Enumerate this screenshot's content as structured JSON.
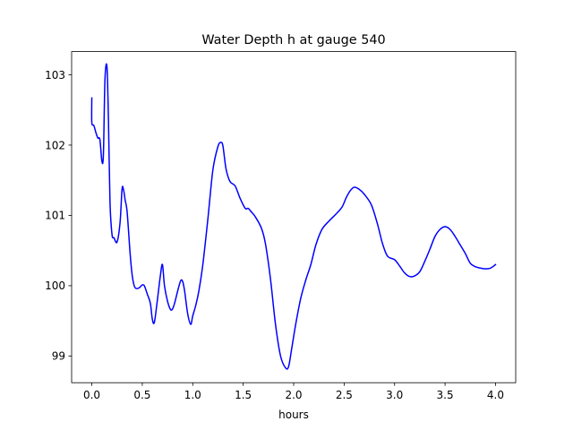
{
  "chart_data": {
    "type": "line",
    "title": "Water Depth h at gauge 540",
    "xlabel": "hours",
    "ylabel": "",
    "xlim": [
      -0.2,
      4.2
    ],
    "ylim": [
      98.62,
      103.33
    ],
    "xticks": [
      0.0,
      0.5,
      1.0,
      1.5,
      2.0,
      2.5,
      3.0,
      3.5,
      4.0
    ],
    "xtick_labels": [
      "0.0",
      "0.5",
      "1.0",
      "1.5",
      "2.0",
      "2.5",
      "3.0",
      "3.5",
      "4.0"
    ],
    "yticks": [
      99,
      100,
      101,
      102,
      103
    ],
    "ytick_labels": [
      "99",
      "100",
      "101",
      "102",
      "103"
    ],
    "grid": false,
    "series": [
      {
        "color": "#0000ff",
        "x": [
          0.0,
          0.0,
          0.02,
          0.04,
          0.06,
          0.08,
          0.1,
          0.115,
          0.13,
          0.15,
          0.165,
          0.18,
          0.2,
          0.22,
          0.25,
          0.28,
          0.3,
          0.315,
          0.33,
          0.35,
          0.38,
          0.4,
          0.42,
          0.44,
          0.47,
          0.5,
          0.52,
          0.55,
          0.58,
          0.6,
          0.62,
          0.65,
          0.68,
          0.7,
          0.72,
          0.75,
          0.78,
          0.8,
          0.82,
          0.85,
          0.88,
          0.9,
          0.92,
          0.95,
          0.98,
          1.0,
          1.03,
          1.06,
          1.1,
          1.15,
          1.2,
          1.25,
          1.28,
          1.3,
          1.33,
          1.37,
          1.42,
          1.47,
          1.52,
          1.55,
          1.58,
          1.62,
          1.68,
          1.72,
          1.77,
          1.82,
          1.87,
          1.92,
          1.95,
          1.98,
          2.02,
          2.07,
          2.12,
          2.17,
          2.22,
          2.28,
          2.35,
          2.42,
          2.48,
          2.52,
          2.56,
          2.6,
          2.65,
          2.7,
          2.77,
          2.83,
          2.88,
          2.93,
          3.0,
          3.05,
          3.1,
          3.15,
          3.2,
          3.25,
          3.3,
          3.35,
          3.4,
          3.45,
          3.5,
          3.55,
          3.6,
          3.65,
          3.7,
          3.75,
          3.8,
          3.85,
          3.9,
          3.95,
          4.0
        ],
        "y": [
          102.67,
          102.32,
          102.28,
          102.18,
          102.1,
          102.08,
          101.77,
          101.87,
          102.92,
          103.12,
          102.35,
          101.2,
          100.73,
          100.68,
          100.62,
          100.9,
          101.38,
          101.36,
          101.22,
          101.05,
          100.45,
          100.15,
          100.0,
          99.96,
          99.97,
          100.01,
          100.0,
          99.88,
          99.75,
          99.52,
          99.48,
          99.8,
          100.15,
          100.3,
          100.0,
          99.78,
          99.66,
          99.67,
          99.75,
          99.92,
          100.07,
          100.06,
          99.92,
          99.6,
          99.45,
          99.57,
          99.72,
          99.92,
          100.3,
          100.95,
          101.65,
          101.98,
          102.04,
          101.98,
          101.66,
          101.48,
          101.42,
          101.24,
          101.1,
          101.1,
          101.05,
          100.98,
          100.82,
          100.6,
          100.1,
          99.45,
          99.0,
          98.83,
          98.85,
          99.1,
          99.45,
          99.82,
          100.08,
          100.3,
          100.58,
          100.8,
          100.92,
          101.02,
          101.12,
          101.25,
          101.35,
          101.4,
          101.37,
          101.3,
          101.15,
          100.88,
          100.6,
          100.42,
          100.37,
          100.28,
          100.18,
          100.13,
          100.14,
          100.2,
          100.35,
          100.52,
          100.7,
          100.8,
          100.84,
          100.8,
          100.7,
          100.58,
          100.46,
          100.32,
          100.27,
          100.25,
          100.24,
          100.25,
          100.3
        ]
      }
    ]
  }
}
